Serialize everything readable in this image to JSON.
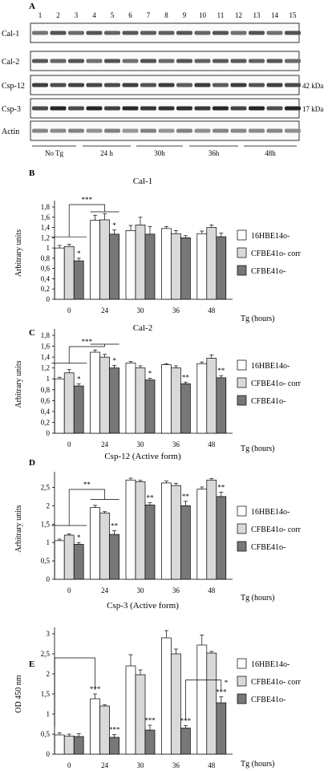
{
  "blot": {
    "panel_letter": "A",
    "lane_numbers": [
      "1",
      "2",
      "3",
      "4",
      "5",
      "6",
      "7",
      "8",
      "9",
      "10",
      "11",
      "12",
      "13",
      "14",
      "15"
    ],
    "rows": [
      "Cal-1",
      "Cal-2",
      "Csp-12",
      "Csp-3",
      "Actin"
    ],
    "mw_labels": {
      "Csp-12": "42 kDa",
      "Csp-3": "17 kDa"
    },
    "time_groups": [
      "No Tg",
      "24 h",
      "30h",
      "36h",
      "48h"
    ]
  },
  "legend_labels": [
    "16HBE14o-",
    "CFBE41o- corr",
    "CFBE41o-"
  ],
  "colors": {
    "s1": "#ffffff",
    "s2": "#d9d9d9",
    "s3": "#777777"
  },
  "chart_data": [
    {
      "type": "bar",
      "panel": "B",
      "title": "Cal-1",
      "xlabel": "Tg (hours)",
      "ylabel": "Arbitrary units",
      "categories": [
        "0",
        "24",
        "30",
        "36",
        "48"
      ],
      "ylim": [
        0,
        1.8
      ],
      "yticks": [
        "0",
        "0,2",
        "0,4",
        "0,6",
        "0,8",
        "1",
        "1,2",
        "1,4",
        "1,6",
        "1,8"
      ],
      "series": [
        {
          "name": "16HBE14o-",
          "values": [
            1.0,
            1.54,
            1.34,
            1.38,
            1.28
          ]
        },
        {
          "name": "CFBE41o- corr",
          "values": [
            1.03,
            1.55,
            1.45,
            1.28,
            1.4
          ]
        },
        {
          "name": "CFBE41o-",
          "values": [
            0.75,
            1.27,
            1.27,
            1.2,
            1.22
          ]
        }
      ],
      "errors": [
        [
          0.05,
          0.1,
          0.1,
          0.04,
          0.05
        ],
        [
          0.04,
          0.12,
          0.15,
          0.06,
          0.05
        ],
        [
          0.05,
          0.08,
          0.15,
          0.04,
          0.07
        ]
      ],
      "marks": [
        {
          "cat": 0,
          "s": 2,
          "text": "*"
        },
        {
          "cat": 1,
          "s": 2,
          "text": "*"
        }
      ],
      "bracket": "***"
    },
    {
      "type": "bar",
      "panel": "C",
      "title": "Cal-2",
      "xlabel": "Tg (hours)",
      "ylabel": "Arbitrary units",
      "categories": [
        "0",
        "24",
        "30",
        "36",
        "48"
      ],
      "ylim": [
        0,
        1.8
      ],
      "yticks": [
        "0",
        "0,2",
        "0,4",
        "0,6",
        "0,8",
        "1",
        "1,2",
        "1,4",
        "1,6",
        "1,8"
      ],
      "series": [
        {
          "name": "16HBE14o-",
          "values": [
            1.0,
            1.49,
            1.29,
            1.26,
            1.28
          ]
        },
        {
          "name": "CFBE41o- corr",
          "values": [
            1.11,
            1.4,
            1.2,
            1.2,
            1.38
          ]
        },
        {
          "name": "CFBE41o-",
          "values": [
            0.87,
            1.2,
            0.98,
            0.91,
            1.02
          ]
        }
      ],
      "errors": [
        [
          0.03,
          0.04,
          0.03,
          0.02,
          0.03
        ],
        [
          0.06,
          0.05,
          0.04,
          0.04,
          0.06
        ],
        [
          0.04,
          0.05,
          0.03,
          0.03,
          0.04
        ]
      ],
      "marks": [
        {
          "cat": 0,
          "s": 2,
          "text": "*"
        },
        {
          "cat": 1,
          "s": 2,
          "text": "*"
        },
        {
          "cat": 2,
          "s": 2,
          "text": "*"
        },
        {
          "cat": 3,
          "s": 2,
          "text": "**"
        },
        {
          "cat": 4,
          "s": 2,
          "text": "**"
        }
      ],
      "bracket": "***"
    },
    {
      "type": "bar",
      "panel": "D",
      "title": "Csp-12 (Active form)",
      "xlabel": "Tg (hours)",
      "ylabel": "Arbitrary units",
      "categories": [
        "0",
        "24",
        "30",
        "36",
        "48"
      ],
      "ylim": [
        0,
        2.75
      ],
      "yticks": [
        "0",
        "0,5",
        "1",
        "1,5",
        "2",
        "2,5"
      ],
      "series": [
        {
          "name": "16HBE14o-",
          "values": [
            1.05,
            1.95,
            2.7,
            2.62,
            2.45
          ]
        },
        {
          "name": "CFBE41o- corr",
          "values": [
            1.2,
            1.8,
            2.65,
            2.55,
            2.7
          ]
        },
        {
          "name": "CFBE41o-",
          "values": [
            0.95,
            1.22,
            2.02,
            2.0,
            2.25
          ]
        }
      ],
      "errors": [
        [
          0.04,
          0.06,
          0.05,
          0.05,
          0.06
        ],
        [
          0.03,
          0.04,
          0.04,
          0.06,
          0.04
        ],
        [
          0.05,
          0.1,
          0.06,
          0.12,
          0.12
        ]
      ],
      "marks": [
        {
          "cat": 0,
          "s": 2,
          "text": "*"
        },
        {
          "cat": 1,
          "s": 2,
          "text": "**"
        },
        {
          "cat": 2,
          "s": 2,
          "text": "**"
        },
        {
          "cat": 3,
          "s": 2,
          "text": "**"
        },
        {
          "cat": 4,
          "s": 2,
          "text": "**"
        }
      ],
      "bracket": "**"
    },
    {
      "type": "bar",
      "panel": "E",
      "title": "Csp-3 (Active form)",
      "xlabel": "Tg (hours)",
      "ylabel": "OD 450 nm",
      "categories": [
        "0",
        "24",
        "30",
        "36",
        "48"
      ],
      "ylim": [
        0,
        3
      ],
      "yticks": [
        "0",
        "0,5",
        "1",
        "1,5",
        "2",
        "2,5",
        "3"
      ],
      "series": [
        {
          "name": "16HBE14o-",
          "values": [
            0.48,
            1.38,
            2.2,
            2.9,
            2.72
          ]
        },
        {
          "name": "CFBE41o- corr",
          "values": [
            0.45,
            1.2,
            1.98,
            2.5,
            2.52
          ]
        },
        {
          "name": "CFBE41o-",
          "values": [
            0.44,
            0.42,
            0.6,
            0.65,
            1.28
          ]
        }
      ],
      "errors": [
        [
          0.05,
          0.12,
          0.28,
          0.18,
          0.25
        ],
        [
          0.05,
          0.03,
          0.12,
          0.12,
          0.04
        ],
        [
          0.07,
          0.07,
          0.12,
          0.06,
          0.15
        ]
      ],
      "marks": [
        {
          "cat": 1,
          "s": 0,
          "text": "***"
        },
        {
          "cat": 1,
          "s": 2,
          "text": "***"
        },
        {
          "cat": 2,
          "s": 2,
          "text": "***"
        },
        {
          "cat": 3,
          "s": 2,
          "text": "***"
        },
        {
          "cat": 4,
          "s": 2,
          "text": "***"
        }
      ],
      "bracket_marks": [
        "*"
      ]
    }
  ]
}
